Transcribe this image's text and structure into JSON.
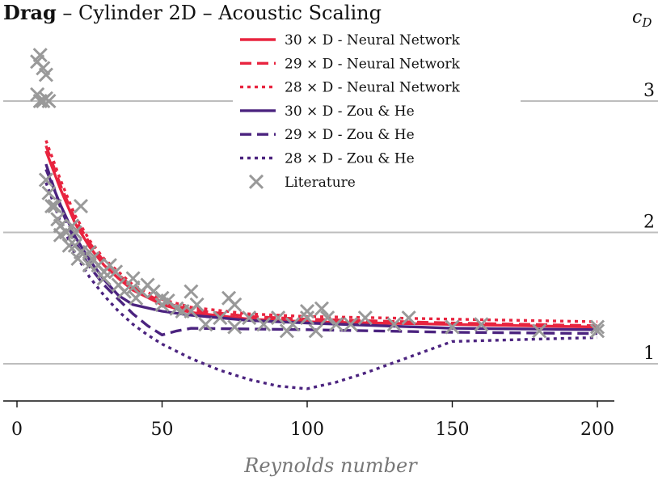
{
  "chart_data": {
    "type": "line",
    "title_bold": "Drag",
    "title_rest": " – Cylinder 2D – Acoustic Scaling",
    "xlabel": "Reynolds number",
    "ylabel": "c",
    "ylabel_sub": "D",
    "xlim": [
      -3,
      206
    ],
    "ylim": [
      0.72,
      3.45
    ],
    "xticks": [
      0,
      50,
      100,
      150,
      200
    ],
    "xtick_labels": [
      "0",
      "50",
      "100",
      "150",
      "200"
    ],
    "yticks": [
      1,
      2,
      3
    ],
    "ytick_labels": [
      "1",
      "2",
      "3"
    ],
    "grid": "horizontal",
    "legend_position": "top-center",
    "colors": {
      "neural": "#e8243f",
      "zouhe": "#4b237f",
      "literature": "#999999",
      "grid": "#bdbdbd",
      "axis": "#111111"
    },
    "series": [
      {
        "key": "nn30",
        "name": "30 × D - Neural Network",
        "color": "#e8243f",
        "dash": "solid",
        "x": [
          10,
          15,
          20,
          25,
          30,
          35,
          40,
          50,
          60,
          80,
          100,
          150,
          200
        ],
        "y": [
          2.62,
          2.33,
          2.07,
          1.89,
          1.75,
          1.65,
          1.56,
          1.45,
          1.39,
          1.34,
          1.32,
          1.3,
          1.28
        ]
      },
      {
        "key": "nn29",
        "name": "29 × D - Neural Network",
        "color": "#e8243f",
        "dash": "dashed",
        "x": [
          10,
          15,
          20,
          25,
          30,
          35,
          40,
          50,
          60,
          80,
          100,
          150,
          200
        ],
        "y": [
          2.66,
          2.36,
          2.1,
          1.92,
          1.78,
          1.68,
          1.58,
          1.47,
          1.41,
          1.36,
          1.34,
          1.31,
          1.29
        ]
      },
      {
        "key": "nn28",
        "name": "28 × D - Neural Network",
        "color": "#e8243f",
        "dash": "dotted",
        "x": [
          10,
          15,
          20,
          25,
          30,
          35,
          40,
          50,
          60,
          80,
          100,
          150,
          200
        ],
        "y": [
          2.7,
          2.4,
          2.13,
          1.94,
          1.8,
          1.7,
          1.6,
          1.49,
          1.43,
          1.38,
          1.36,
          1.34,
          1.32
        ]
      },
      {
        "key": "zh30",
        "name": "30 × D - Zou & He",
        "color": "#4b237f",
        "dash": "solid",
        "x": [
          10,
          15,
          20,
          25,
          30,
          35,
          40,
          50,
          60,
          80,
          100,
          150,
          200
        ],
        "y": [
          2.48,
          2.21,
          1.97,
          1.79,
          1.64,
          1.52,
          1.45,
          1.4,
          1.37,
          1.33,
          1.31,
          1.27,
          1.26
        ]
      },
      {
        "key": "zh29",
        "name": "29 × D - Zou & He",
        "color": "#4b237f",
        "dash": "dashed",
        "x": [
          10,
          15,
          20,
          25,
          30,
          35,
          40,
          45,
          50,
          55,
          60,
          100,
          150,
          200
        ],
        "y": [
          2.52,
          2.19,
          1.93,
          1.74,
          1.6,
          1.49,
          1.38,
          1.29,
          1.22,
          1.25,
          1.27,
          1.26,
          1.24,
          1.23
        ]
      },
      {
        "key": "zh28",
        "name": "28 × D - Zou & He",
        "color": "#4b237f",
        "dash": "dotted",
        "x": [
          10,
          15,
          20,
          25,
          30,
          35,
          40,
          45,
          50,
          60,
          70,
          80,
          90,
          100,
          110,
          120,
          130,
          140,
          150,
          200
        ],
        "y": [
          2.38,
          2.08,
          1.84,
          1.66,
          1.52,
          1.4,
          1.3,
          1.22,
          1.15,
          1.04,
          0.95,
          0.88,
          0.83,
          0.81,
          0.86,
          0.93,
          1.01,
          1.09,
          1.17,
          1.2
        ]
      }
    ],
    "literature": {
      "name": "Literature",
      "color": "#999999",
      "x": [
        7,
        8,
        9,
        10,
        7,
        8,
        9,
        10,
        11,
        10,
        11,
        12,
        13,
        14,
        15,
        15,
        17,
        18,
        19,
        20,
        20,
        21,
        22,
        22,
        25,
        25,
        26,
        28,
        30,
        30,
        32,
        34,
        35,
        37,
        40,
        40,
        41,
        43,
        45,
        47,
        50,
        50,
        52,
        55,
        57,
        60,
        60,
        62,
        65,
        70,
        73,
        75,
        75,
        80,
        85,
        90,
        93,
        95,
        100,
        100,
        103,
        105,
        107,
        110,
        115,
        120,
        130,
        135,
        150,
        160,
        180,
        200,
        200
      ],
      "y": [
        3.3,
        3.35,
        3.25,
        3.2,
        3.05,
        3.0,
        3.0,
        3.02,
        3.0,
        2.4,
        2.3,
        2.2,
        2.2,
        2.1,
        2.05,
        1.98,
        2.0,
        1.9,
        2.05,
        2.0,
        1.9,
        1.8,
        1.85,
        2.2,
        1.85,
        1.75,
        1.8,
        1.75,
        1.7,
        1.65,
        1.75,
        1.7,
        1.6,
        1.55,
        1.58,
        1.65,
        1.5,
        1.55,
        1.6,
        1.55,
        1.45,
        1.5,
        1.48,
        1.42,
        1.4,
        1.4,
        1.55,
        1.45,
        1.3,
        1.35,
        1.5,
        1.45,
        1.28,
        1.35,
        1.3,
        1.35,
        1.25,
        1.3,
        1.35,
        1.4,
        1.25,
        1.42,
        1.35,
        1.3,
        1.3,
        1.35,
        1.3,
        1.35,
        1.28,
        1.3,
        1.25,
        1.25,
        1.28
      ]
    }
  }
}
